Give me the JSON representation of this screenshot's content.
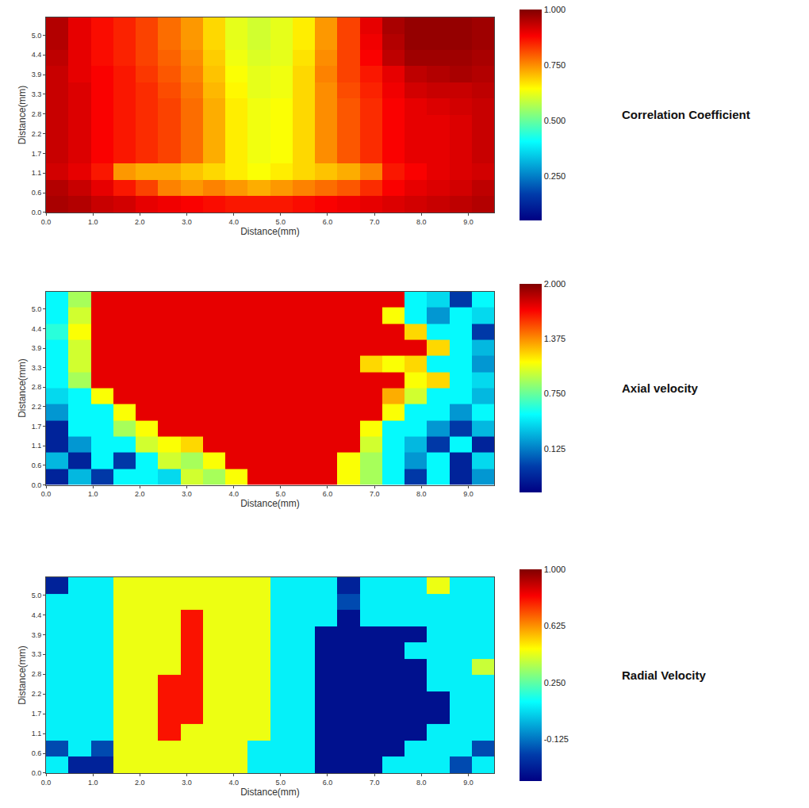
{
  "chart_data": [
    {
      "type": "heatmap",
      "color": "jet",
      "colorbar_title": "Correlation Coefficient",
      "xlabel": "Distance(mm)",
      "ylabel": "Distance(mm)",
      "xlim": [
        0,
        9.55
      ],
      "ylim": [
        0,
        5.5
      ],
      "xticks": [
        {
          "value": 0,
          "label": "0.0"
        },
        {
          "value": 1,
          "label": "1.0"
        },
        {
          "value": 2,
          "label": "2.0"
        },
        {
          "value": 3,
          "label": "3.0"
        },
        {
          "value": 4,
          "label": "4.0"
        },
        {
          "value": 5,
          "label": "5.0"
        },
        {
          "value": 6,
          "label": "6.0"
        },
        {
          "value": 7,
          "label": "7.0"
        },
        {
          "value": 8,
          "label": "8.0"
        },
        {
          "value": 9,
          "label": "9.0"
        }
      ],
      "yticks": [
        {
          "value": 0,
          "label": "0.0"
        },
        {
          "value": 0.556,
          "label": "0.6"
        },
        {
          "value": 1.111,
          "label": "1.1"
        },
        {
          "value": 1.667,
          "label": "1.7"
        },
        {
          "value": 2.222,
          "label": "2.2"
        },
        {
          "value": 2.778,
          "label": "2.8"
        },
        {
          "value": 3.333,
          "label": "3.3"
        },
        {
          "value": 3.889,
          "label": "3.9"
        },
        {
          "value": 4.444,
          "label": "4.4"
        },
        {
          "value": 5,
          "label": "5.0"
        }
      ],
      "x": [
        0.24,
        0.72,
        1.19,
        1.67,
        2.15,
        2.63,
        3.1,
        3.58,
        4.06,
        4.54,
        5.01,
        5.49,
        5.97,
        6.45,
        6.92,
        7.4,
        7.88,
        8.36,
        8.83,
        9.31
      ],
      "y": [
        0.23,
        0.69,
        1.15,
        1.6,
        2.06,
        2.52,
        2.98,
        3.44,
        3.9,
        4.35,
        4.81,
        5.27
      ],
      "colorbar_range": [
        0.05,
        1.0
      ],
      "colorbar_ticks": [
        {
          "value": 0.25,
          "label": "0.250"
        },
        {
          "value": 0.5,
          "label": "0.500"
        },
        {
          "value": 0.75,
          "label": "0.750"
        },
        {
          "value": 1.0,
          "label": "1.000"
        }
      ],
      "z": [
        [
          0.96,
          0.95,
          0.93,
          0.92,
          0.9,
          0.89,
          0.88,
          0.87,
          0.86,
          0.86,
          0.86,
          0.87,
          0.88,
          0.89,
          0.9,
          0.91,
          0.92,
          0.93,
          0.94,
          0.95
        ],
        [
          0.95,
          0.93,
          0.9,
          0.86,
          0.82,
          0.76,
          0.74,
          0.76,
          0.74,
          0.72,
          0.74,
          0.76,
          0.78,
          0.8,
          0.84,
          0.88,
          0.9,
          0.91,
          0.92,
          0.94
        ],
        [
          0.92,
          0.9,
          0.86,
          0.74,
          0.72,
          0.72,
          0.7,
          0.68,
          0.66,
          0.64,
          0.66,
          0.68,
          0.7,
          0.72,
          0.76,
          0.86,
          0.88,
          0.9,
          0.91,
          0.92
        ],
        [
          0.93,
          0.91,
          0.88,
          0.86,
          0.84,
          0.82,
          0.78,
          0.72,
          0.66,
          0.63,
          0.64,
          0.68,
          0.75,
          0.8,
          0.84,
          0.88,
          0.9,
          0.9,
          0.91,
          0.93
        ],
        [
          0.93,
          0.91,
          0.88,
          0.86,
          0.84,
          0.82,
          0.78,
          0.72,
          0.66,
          0.63,
          0.64,
          0.68,
          0.75,
          0.8,
          0.84,
          0.88,
          0.9,
          0.9,
          0.91,
          0.93
        ],
        [
          0.93,
          0.91,
          0.88,
          0.86,
          0.84,
          0.82,
          0.78,
          0.72,
          0.66,
          0.63,
          0.64,
          0.68,
          0.75,
          0.8,
          0.84,
          0.88,
          0.9,
          0.9,
          0.91,
          0.93
        ],
        [
          0.93,
          0.91,
          0.88,
          0.86,
          0.84,
          0.82,
          0.78,
          0.72,
          0.66,
          0.63,
          0.64,
          0.68,
          0.75,
          0.8,
          0.84,
          0.88,
          0.9,
          0.91,
          0.92,
          0.93
        ],
        [
          0.93,
          0.91,
          0.88,
          0.86,
          0.84,
          0.81,
          0.77,
          0.71,
          0.65,
          0.62,
          0.63,
          0.68,
          0.75,
          0.81,
          0.85,
          0.89,
          0.92,
          0.93,
          0.93,
          0.94
        ],
        [
          0.93,
          0.9,
          0.88,
          0.86,
          0.83,
          0.8,
          0.76,
          0.7,
          0.64,
          0.62,
          0.63,
          0.68,
          0.76,
          0.82,
          0.86,
          0.9,
          0.94,
          0.95,
          0.96,
          0.95
        ],
        [
          0.94,
          0.9,
          0.87,
          0.85,
          0.82,
          0.79,
          0.75,
          0.69,
          0.63,
          0.61,
          0.62,
          0.67,
          0.75,
          0.82,
          0.88,
          0.94,
          0.97,
          0.97,
          0.97,
          0.96
        ],
        [
          0.95,
          0.9,
          0.87,
          0.85,
          0.82,
          0.78,
          0.74,
          0.68,
          0.62,
          0.6,
          0.62,
          0.66,
          0.74,
          0.82,
          0.89,
          0.95,
          0.98,
          0.98,
          0.98,
          0.97
        ],
        [
          0.95,
          0.9,
          0.87,
          0.85,
          0.82,
          0.78,
          0.74,
          0.68,
          0.62,
          0.6,
          0.62,
          0.66,
          0.74,
          0.82,
          0.9,
          0.96,
          0.98,
          0.98,
          0.98,
          0.97
        ]
      ]
    },
    {
      "type": "heatmap",
      "color": "jet",
      "colorbar_title": "Axial velocity",
      "xlabel": "Distance(mm)",
      "ylabel": "Distance(mm)",
      "xlim": [
        0,
        9.55
      ],
      "ylim": [
        0,
        5.5
      ],
      "xticks": [
        {
          "value": 0,
          "label": "0.0"
        },
        {
          "value": 1,
          "label": "1.0"
        },
        {
          "value": 2,
          "label": "2.0"
        },
        {
          "value": 3,
          "label": "3.0"
        },
        {
          "value": 4,
          "label": "4.0"
        },
        {
          "value": 5,
          "label": "5.0"
        },
        {
          "value": 6,
          "label": "6.0"
        },
        {
          "value": 7,
          "label": "7.0"
        },
        {
          "value": 8,
          "label": "8.0"
        },
        {
          "value": 9,
          "label": "9.0"
        }
      ],
      "yticks": [
        {
          "value": 0,
          "label": "0.0"
        },
        {
          "value": 0.556,
          "label": "0.6"
        },
        {
          "value": 1.111,
          "label": "1.1"
        },
        {
          "value": 1.667,
          "label": "1.7"
        },
        {
          "value": 2.222,
          "label": "2.2"
        },
        {
          "value": 2.778,
          "label": "2.8"
        },
        {
          "value": 3.333,
          "label": "3.3"
        },
        {
          "value": 3.889,
          "label": "3.9"
        },
        {
          "value": 4.444,
          "label": "4.4"
        },
        {
          "value": 5,
          "label": "5.0"
        }
      ],
      "x": [
        0.24,
        0.72,
        1.19,
        1.67,
        2.15,
        2.63,
        3.1,
        3.58,
        4.06,
        4.54,
        5.01,
        5.49,
        5.97,
        6.45,
        6.92,
        7.4,
        7.88,
        8.36,
        8.83,
        9.31
      ],
      "y": [
        0.23,
        0.69,
        1.15,
        1.6,
        2.06,
        2.52,
        2.98,
        3.44,
        3.9,
        4.35,
        4.81,
        5.27
      ],
      "colorbar_range": [
        -0.375,
        2.0
      ],
      "colorbar_ticks": [
        {
          "value": 0.125,
          "label": "0.125"
        },
        {
          "value": 0.75,
          "label": "0.750"
        },
        {
          "value": 1.375,
          "label": "1.375"
        },
        {
          "value": 2.0,
          "label": "2.000"
        }
      ],
      "z": [
        [
          -0.2,
          0.3,
          -0.1,
          0.5,
          0.5,
          0.4,
          1.0,
          0.9,
          1.1,
          1.75,
          1.75,
          1.75,
          1.75,
          1.1,
          0.9,
          0.5,
          -0.1,
          0.5,
          -0.2,
          0.2
        ],
        [
          0.3,
          -0.2,
          0.5,
          -0.1,
          0.5,
          1.0,
          0.9,
          1.1,
          1.75,
          1.75,
          1.75,
          1.75,
          1.75,
          1.1,
          0.9,
          0.5,
          0.2,
          0.5,
          -0.2,
          0.4
        ],
        [
          -0.2,
          0.2,
          0.5,
          0.5,
          1.0,
          1.1,
          1.2,
          1.75,
          1.75,
          1.75,
          1.75,
          1.75,
          1.75,
          1.75,
          1.0,
          0.5,
          0.3,
          -0.1,
          0.5,
          -0.2
        ],
        [
          -0.2,
          0.5,
          0.5,
          0.9,
          1.1,
          1.75,
          1.75,
          1.75,
          1.75,
          1.75,
          1.75,
          1.75,
          1.75,
          1.75,
          1.1,
          0.5,
          0.5,
          0.2,
          -0.1,
          0.3
        ],
        [
          0.2,
          0.5,
          0.5,
          1.1,
          1.75,
          1.75,
          1.75,
          1.75,
          1.75,
          1.75,
          1.75,
          1.75,
          1.75,
          1.75,
          1.75,
          1.1,
          0.5,
          0.5,
          0.2,
          0.5
        ],
        [
          0.4,
          0.5,
          1.1,
          1.75,
          1.75,
          1.75,
          1.75,
          1.75,
          1.75,
          1.75,
          1.75,
          1.75,
          1.75,
          1.75,
          1.75,
          1.3,
          1.0,
          0.5,
          0.5,
          0.3
        ],
        [
          0.5,
          0.9,
          1.75,
          1.75,
          1.75,
          1.75,
          1.75,
          1.75,
          1.75,
          1.75,
          1.75,
          1.75,
          1.75,
          1.75,
          1.75,
          1.75,
          1.1,
          1.2,
          0.5,
          0.4
        ],
        [
          0.5,
          1.0,
          1.75,
          1.75,
          1.75,
          1.75,
          1.75,
          1.75,
          1.75,
          1.75,
          1.75,
          1.75,
          1.75,
          1.75,
          1.2,
          1.1,
          1.2,
          0.5,
          0.5,
          0.2
        ],
        [
          0.5,
          1.0,
          1.75,
          1.75,
          1.75,
          1.75,
          1.75,
          1.75,
          1.75,
          1.75,
          1.75,
          1.75,
          1.75,
          1.75,
          1.75,
          1.75,
          1.75,
          1.2,
          0.5,
          0.3
        ],
        [
          0.6,
          1.1,
          1.75,
          1.75,
          1.75,
          1.75,
          1.75,
          1.75,
          1.75,
          1.75,
          1.75,
          1.75,
          1.75,
          1.75,
          1.75,
          1.75,
          1.2,
          0.5,
          0.5,
          -0.1
        ],
        [
          0.5,
          1.0,
          1.75,
          1.75,
          1.75,
          1.75,
          1.75,
          1.75,
          1.75,
          1.75,
          1.75,
          1.75,
          1.75,
          1.75,
          1.75,
          1.1,
          0.5,
          0.2,
          0.5,
          0.4
        ],
        [
          0.5,
          0.9,
          1.75,
          1.75,
          1.75,
          1.75,
          1.75,
          1.75,
          1.75,
          1.75,
          1.75,
          1.75,
          1.75,
          1.75,
          1.75,
          1.75,
          0.5,
          0.4,
          -0.1,
          0.5
        ]
      ]
    },
    {
      "type": "heatmap",
      "color": "jet",
      "colorbar_title": "Radial Velocity",
      "xlabel": "Distance(mm)",
      "ylabel": "Distance(mm)",
      "xlim": [
        0,
        9.55
      ],
      "ylim": [
        0,
        5.5
      ],
      "xticks": [
        {
          "value": 0,
          "label": "0.0"
        },
        {
          "value": 1,
          "label": "1.0"
        },
        {
          "value": 2,
          "label": "2.0"
        },
        {
          "value": 3,
          "label": "3.0"
        },
        {
          "value": 4,
          "label": "4.0"
        },
        {
          "value": 5,
          "label": "5.0"
        },
        {
          "value": 6,
          "label": "6.0"
        },
        {
          "value": 7,
          "label": "7.0"
        },
        {
          "value": 8,
          "label": "8.0"
        },
        {
          "value": 9,
          "label": "9.0"
        }
      ],
      "yticks": [
        {
          "value": 0,
          "label": "0.0"
        },
        {
          "value": 0.556,
          "label": "0.6"
        },
        {
          "value": 1.111,
          "label": "1.1"
        },
        {
          "value": 1.667,
          "label": "1.7"
        },
        {
          "value": 2.222,
          "label": "2.2"
        },
        {
          "value": 2.778,
          "label": "2.8"
        },
        {
          "value": 3.333,
          "label": "3.3"
        },
        {
          "value": 3.889,
          "label": "3.9"
        },
        {
          "value": 4.444,
          "label": "4.4"
        },
        {
          "value": 5,
          "label": "5.0"
        }
      ],
      "x": [
        0.24,
        0.72,
        1.19,
        1.67,
        2.15,
        2.63,
        3.1,
        3.58,
        4.06,
        4.54,
        5.01,
        5.49,
        5.97,
        6.45,
        6.92,
        7.4,
        7.88,
        8.36,
        8.83,
        9.31
      ],
      "y": [
        0.23,
        0.69,
        1.15,
        1.6,
        2.06,
        2.52,
        2.98,
        3.44,
        3.9,
        4.35,
        4.81,
        5.27
      ],
      "colorbar_range": [
        -0.4,
        1.0
      ],
      "colorbar_ticks": [
        {
          "value": -0.125,
          "label": "-0.125"
        },
        {
          "value": 0.25,
          "label": "0.250"
        },
        {
          "value": 0.625,
          "label": "0.625"
        },
        {
          "value": 1.0,
          "label": "1.000"
        }
      ],
      "z": [
        [
          0.1,
          -0.3,
          -0.3,
          0.45,
          0.45,
          0.45,
          0.45,
          0.45,
          0.45,
          0.1,
          0.1,
          0.1,
          -0.35,
          -0.35,
          -0.35,
          0.1,
          0.1,
          0.1,
          -0.2,
          0.1
        ],
        [
          -0.2,
          0.1,
          -0.2,
          0.45,
          0.45,
          0.45,
          0.45,
          0.45,
          0.45,
          0.1,
          0.1,
          0.1,
          -0.35,
          -0.35,
          -0.35,
          -0.35,
          0.1,
          0.1,
          0.1,
          -0.2
        ],
        [
          0.1,
          0.1,
          0.1,
          0.45,
          0.45,
          0.8,
          0.45,
          0.45,
          0.45,
          0.45,
          0.1,
          0.1,
          -0.35,
          -0.35,
          -0.35,
          -0.35,
          -0.35,
          0.1,
          0.1,
          0.1
        ],
        [
          0.1,
          0.1,
          0.1,
          0.45,
          0.45,
          0.8,
          0.8,
          0.45,
          0.45,
          0.45,
          0.1,
          0.1,
          -0.35,
          -0.35,
          -0.35,
          -0.35,
          -0.35,
          -0.35,
          0.1,
          0.1
        ],
        [
          0.1,
          0.1,
          0.1,
          0.45,
          0.45,
          0.8,
          0.8,
          0.45,
          0.45,
          0.45,
          0.1,
          0.1,
          -0.35,
          -0.35,
          -0.35,
          -0.35,
          -0.35,
          -0.35,
          0.1,
          0.1
        ],
        [
          0.1,
          0.1,
          0.1,
          0.45,
          0.45,
          0.8,
          0.8,
          0.45,
          0.45,
          0.45,
          0.1,
          0.1,
          -0.35,
          -0.35,
          -0.35,
          -0.35,
          -0.35,
          0.1,
          0.1,
          0.1
        ],
        [
          0.1,
          0.1,
          0.1,
          0.45,
          0.45,
          0.45,
          0.8,
          0.45,
          0.45,
          0.45,
          0.1,
          0.1,
          -0.35,
          -0.35,
          -0.35,
          -0.35,
          -0.35,
          0.1,
          0.1,
          0.4
        ],
        [
          0.1,
          0.1,
          0.1,
          0.45,
          0.45,
          0.45,
          0.8,
          0.45,
          0.45,
          0.45,
          0.1,
          0.1,
          -0.35,
          -0.35,
          -0.35,
          -0.35,
          0.1,
          0.1,
          0.1,
          0.1
        ],
        [
          0.1,
          0.1,
          0.1,
          0.45,
          0.45,
          0.45,
          0.8,
          0.45,
          0.45,
          0.45,
          0.1,
          0.1,
          -0.35,
          -0.35,
          -0.35,
          -0.35,
          -0.35,
          0.1,
          0.1,
          0.1
        ],
        [
          0.1,
          0.1,
          0.1,
          0.45,
          0.45,
          0.45,
          0.8,
          0.45,
          0.45,
          0.45,
          0.1,
          0.1,
          0.1,
          -0.35,
          0.1,
          0.1,
          0.1,
          0.1,
          0.1,
          0.1
        ],
        [
          0.1,
          0.1,
          0.1,
          0.45,
          0.45,
          0.45,
          0.45,
          0.45,
          0.45,
          0.45,
          0.1,
          0.1,
          0.1,
          -0.2,
          0.1,
          0.1,
          0.1,
          0.1,
          0.1,
          0.1
        ],
        [
          -0.3,
          0.1,
          0.1,
          0.45,
          0.45,
          0.45,
          0.45,
          0.45,
          0.45,
          0.45,
          0.1,
          0.1,
          0.1,
          -0.3,
          0.1,
          0.1,
          0.1,
          0.45,
          0.1,
          0.1
        ]
      ]
    }
  ]
}
